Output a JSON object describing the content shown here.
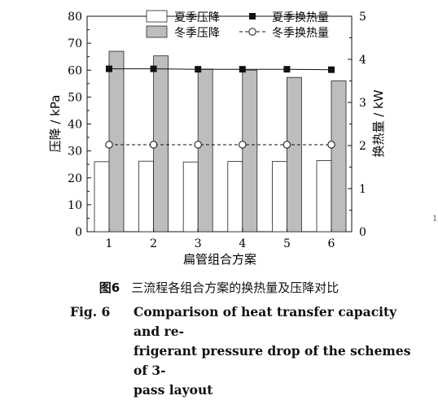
{
  "chart_data": {
    "type": "bar",
    "categories": [
      "1",
      "2",
      "3",
      "4",
      "5",
      "6"
    ],
    "xlabel": "扁管组合方案",
    "ylabel_left": "压降 / kPa",
    "ylabel_right": "换热量 / kW",
    "ylim_left": [
      0,
      80
    ],
    "ylim_right": [
      0,
      5
    ],
    "yticks_left": [
      "0",
      "10",
      "20",
      "30",
      "40",
      "50",
      "60",
      "70",
      "80"
    ],
    "yticks_right": [
      "0",
      "1",
      "2",
      "3",
      "4",
      "5"
    ],
    "series": [
      {
        "name": "夏季压降",
        "kind": "bar",
        "axis": "left",
        "fill": "#ffffff",
        "values": [
          26.0,
          26.2,
          25.9,
          26.1,
          26.1,
          26.4
        ]
      },
      {
        "name": "冬季压降",
        "kind": "bar",
        "axis": "left",
        "fill": "#bdbdbd",
        "values": [
          67.0,
          65.3,
          60.4,
          60.0,
          57.3,
          56.0
        ]
      },
      {
        "name": "夏季换热量",
        "kind": "line",
        "axis": "right",
        "marker": "filled-square",
        "dash": "solid",
        "values": [
          3.78,
          3.78,
          3.77,
          3.77,
          3.77,
          3.76
        ]
      },
      {
        "name": "冬季换热量",
        "kind": "line",
        "axis": "right",
        "marker": "hollow-circle",
        "dash": "dashed",
        "values": [
          2.02,
          2.02,
          2.02,
          2.02,
          2.02,
          2.02
        ]
      }
    ],
    "legend_position": "top-right",
    "grid": false
  },
  "caption": {
    "cn_fig_no": "图6",
    "cn_text": "三流程各组合方案的换热量及压降对比",
    "en_fig_no": "Fig. 6",
    "en_line1": "Comparison of heat transfer capacity and re-",
    "en_line2": "frigerant pressure drop of the schemes of 3-",
    "en_line3": "pass layout"
  },
  "stray_mark": "1"
}
